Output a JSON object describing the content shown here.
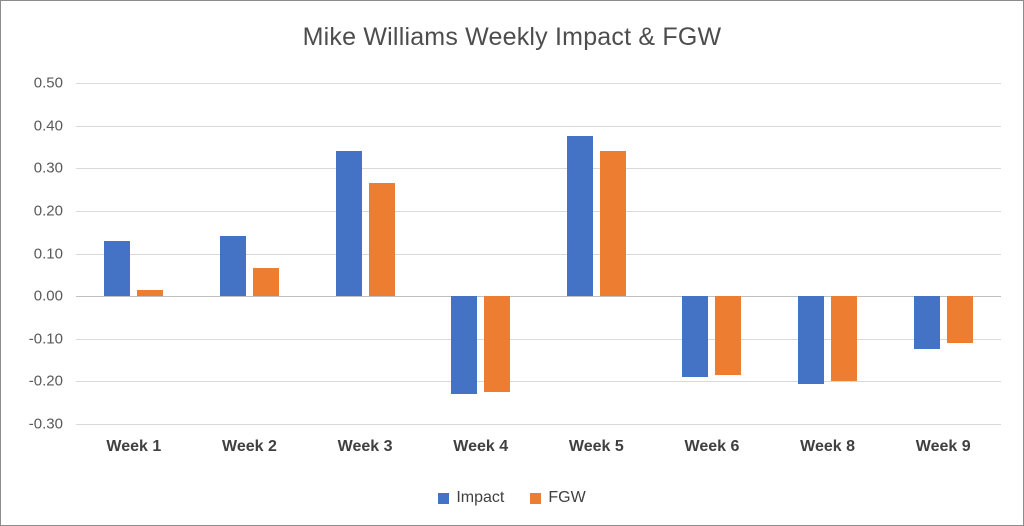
{
  "chart_data": {
    "type": "bar",
    "title": "Mike Williams Weekly Impact & FGW",
    "categories": [
      "Week 1",
      "Week 2",
      "Week 3",
      "Week 4",
      "Week 5",
      "Week 6",
      "Week 8",
      "Week 9"
    ],
    "series": [
      {
        "name": "Impact",
        "color": "#4472C4",
        "values": [
          0.13,
          0.14,
          0.34,
          -0.23,
          0.375,
          -0.19,
          -0.205,
          -0.125
        ]
      },
      {
        "name": "FGW",
        "color": "#ED7D31",
        "values": [
          0.015,
          0.065,
          0.265,
          -0.225,
          0.34,
          -0.185,
          -0.2,
          -0.11
        ]
      }
    ],
    "ylim": [
      -0.3,
      0.5
    ],
    "ytick_step": 0.1,
    "ytick_format_decimals": 2,
    "grid": true,
    "legend_position": "bottom",
    "gridline_color": "#d9d9d9",
    "zero_line_color": "#bfbfbf"
  }
}
